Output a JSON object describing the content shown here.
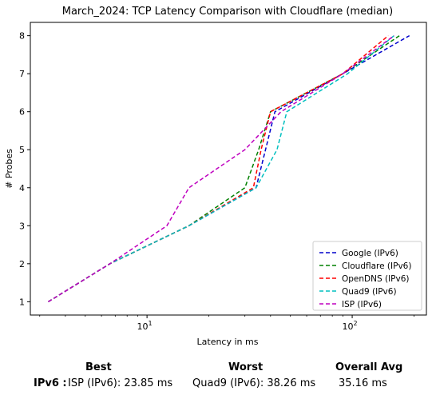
{
  "chart_data": {
    "type": "line",
    "title": "March_2024: TCP Latency Comparison with Cloudflare (median)",
    "xlabel": "Latency in ms",
    "ylabel": "# Probes",
    "xscale": "log",
    "xlim": [
      2.7,
      230
    ],
    "ylim": [
      0.65,
      8.35
    ],
    "xticks": [
      {
        "value": 10,
        "label": "10^1"
      },
      {
        "value": 100,
        "label": "10^2"
      }
    ],
    "yticks": [
      1,
      2,
      3,
      4,
      5,
      6,
      7,
      8
    ],
    "grid": false,
    "legend_position": "lower-right",
    "series": [
      {
        "name": "Google (IPv6)",
        "color": "#0000cc",
        "x": [
          3.3,
          6.6,
          16,
          34,
          42,
          90,
          190
        ],
        "y": [
          1,
          2,
          3,
          4,
          6,
          7,
          8
        ]
      },
      {
        "name": "Cloudflare (IPv6)",
        "color": "#008000",
        "x": [
          3.3,
          6.6,
          16,
          30,
          35,
          40,
          90,
          170
        ],
        "y": [
          1,
          2,
          3,
          4,
          5,
          6,
          7,
          8
        ]
      },
      {
        "name": "OpenDNS (IPv6)",
        "color": "#ff0000",
        "x": [
          3.3,
          6.6,
          16,
          33,
          36,
          40,
          90,
          150
        ],
        "y": [
          1,
          2,
          3,
          4,
          5,
          6,
          7,
          8
        ]
      },
      {
        "name": "Quad9 (IPv6)",
        "color": "#00bfbf",
        "x": [
          3.3,
          6.6,
          16,
          34,
          43,
          48,
          95,
          160
        ],
        "y": [
          1,
          2,
          3,
          4,
          5,
          6,
          7,
          8
        ]
      },
      {
        "name": "ISP (IPv6)",
        "color": "#bf00bf",
        "x": [
          3.3,
          6.6,
          12.5,
          16,
          30,
          45,
          90,
          160
        ],
        "y": [
          1,
          2,
          3,
          4,
          5,
          6,
          7,
          8
        ]
      }
    ]
  },
  "summary": {
    "best_header": "Best",
    "worst_header": "Worst",
    "avg_header": "Overall Avg",
    "row_label": "IPv6 :",
    "best_value": "ISP (IPv6): 23.85 ms",
    "worst_value": "Quad9 (IPv6): 38.26 ms",
    "avg_value": "35.16 ms"
  }
}
